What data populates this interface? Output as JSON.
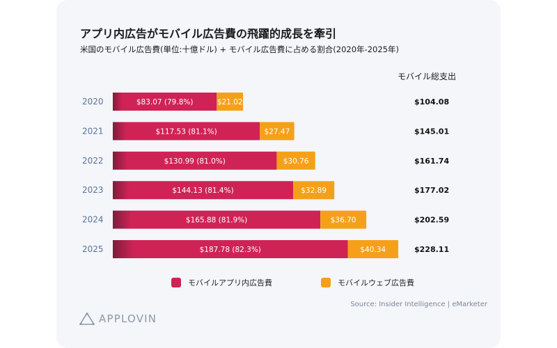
{
  "title": "アプリ内広告がモバイル広告費の飛躍的成長を牽引",
  "subtitle": "米国のモバイル広告費(単位:十億ドル) + モバイル広告費に占める割合(2020年-2025年)",
  "total_header": "モバイル総支出",
  "source": "Source: Insider Intelligence | eMarketer",
  "logo_text": "APPLOVIN",
  "colors": {
    "in_app": "#cf2356",
    "in_app_dark": "#7d1d3c",
    "web": "#f6a01a"
  },
  "chart_data": {
    "type": "bar",
    "orientation": "horizontal",
    "stacked": true,
    "categories": [
      "2020",
      "2021",
      "2022",
      "2023",
      "2024",
      "2025"
    ],
    "series": [
      {
        "name": "モバイルアプリ内広告費",
        "values": [
          83.07,
          117.53,
          130.99,
          144.13,
          165.88,
          187.78
        ],
        "labels": [
          "$83.07",
          "$117.53",
          "$130.99",
          "$144.13",
          "$165.88",
          "$187.78"
        ],
        "share_labels": [
          "(79.8%)",
          "(81.1%)",
          "(81.0%)",
          "(81.4%)",
          "(81.9%)",
          "(82.3%)"
        ]
      },
      {
        "name": "モバイルウェブ広告費",
        "values": [
          21.02,
          27.47,
          30.76,
          32.89,
          36.7,
          40.34
        ],
        "labels": [
          "$21.02",
          "$27.47",
          "$30.76",
          "$32.89",
          "$36.70",
          "$40.34"
        ]
      }
    ],
    "totals": [
      "$104.08",
      "$145.01",
      "$161.74",
      "$177.02",
      "$202.59",
      "$228.11"
    ],
    "xlim": [
      0,
      228.11
    ],
    "legend_position": "bottom",
    "grid": false
  }
}
